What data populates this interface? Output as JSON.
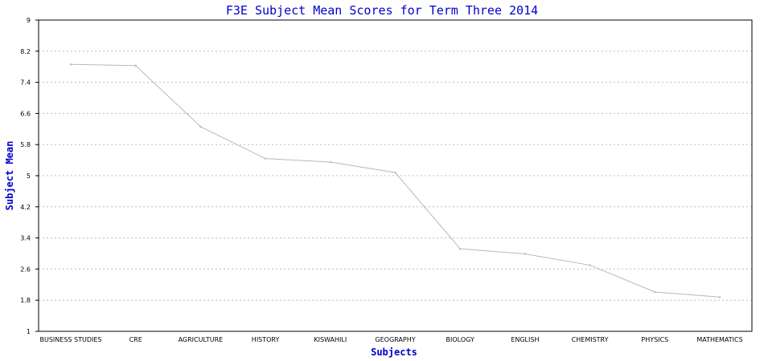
{
  "chart_data": {
    "type": "line",
    "title": "F3E Subject Mean Scores for Term Three 2014",
    "xlabel": "Subjects",
    "ylabel": "Subject Mean",
    "categories": [
      "BUSINESS STUDIES",
      "CRE",
      "AGRICULTURE",
      "HISTORY",
      "KISWAHILI",
      "GEOGRAPHY",
      "BIOLOGY",
      "ENGLISH",
      "CHEMISTRY",
      "PHYSICS",
      "MATHEMATICS"
    ],
    "series": [
      {
        "values": [
          7.86,
          7.83,
          6.26,
          5.44,
          5.35,
          5.08,
          3.12,
          2.99,
          2.7,
          2.01,
          1.88
        ],
        "color": "#b8b8b8"
      }
    ],
    "ylim": [
      1,
      9
    ],
    "yticks": [
      "1",
      "1.8",
      "2.6",
      "3.4",
      "4.2",
      "5",
      "5.8",
      "6.6",
      "7.4",
      "8.2",
      "9"
    ],
    "grid": true,
    "legend": "none"
  }
}
